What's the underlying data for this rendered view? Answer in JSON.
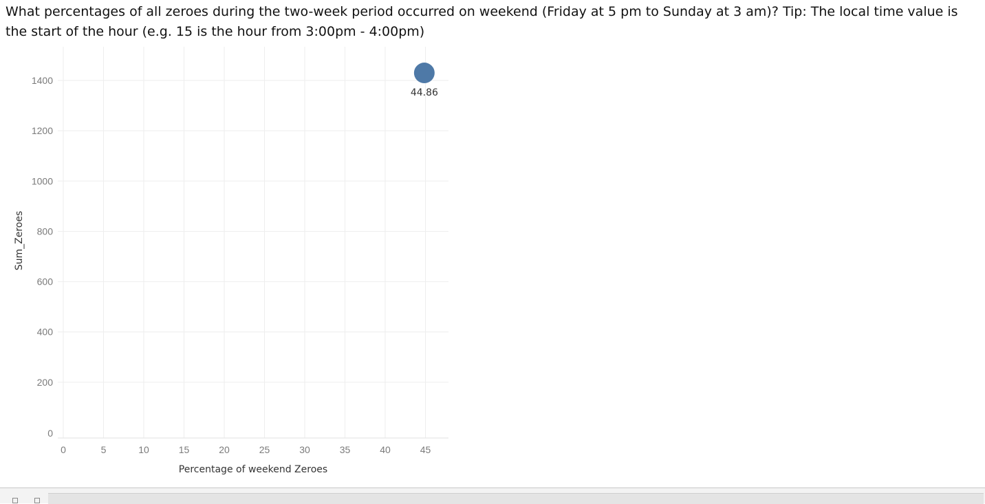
{
  "question": "What percentages of all zeroes during the two-week period occurred on weekend (Friday at 5 pm to Sunday at 3 am)? Tip: The local time value is the start of the hour (e.g. 15 is the hour from 3:00pm - 4:00pm)",
  "chart_data": {
    "type": "scatter",
    "xlabel": "Percentage of weekend Zeroes",
    "ylabel": "Sum_Zeroes",
    "x_ticks": [
      "0",
      "5",
      "10",
      "15",
      "20",
      "25",
      "30",
      "35",
      "40",
      "45"
    ],
    "y_ticks": [
      "0",
      "200",
      "400",
      "600",
      "800",
      "1000",
      "1200",
      "1400"
    ],
    "xlim": [
      0,
      48
    ],
    "ylim": [
      0,
      1400
    ],
    "grid": true,
    "points": [
      {
        "x": 44.86,
        "y": 1430,
        "label": "44.86"
      }
    ],
    "colors": {
      "point": "#4e79a7",
      "grid": "#eeeeee"
    }
  },
  "bottom_bar": {
    "icons": [
      "sheet-icon",
      "dashboard-icon"
    ]
  }
}
